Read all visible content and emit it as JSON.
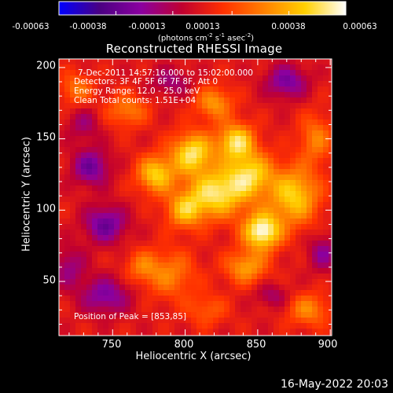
{
  "colorbar": {
    "tick_labels": [
      "-0.00063",
      "-0.00038",
      "-0.00013",
      "0.00013",
      "0.00038",
      "0.00063"
    ],
    "units_label": {
      "pre": "(photons cm",
      "exp1": "-2",
      "mid1": " s",
      "exp2": "-1",
      "mid2": " asec",
      "exp3": "-2",
      "post": ")"
    },
    "range": [
      -0.00063,
      0.00063
    ],
    "colors": [
      "#0000ff",
      "#4b0082",
      "#8b00a0",
      "#c00030",
      "#ff3000",
      "#ff8000",
      "#ffd000",
      "#ffffff"
    ]
  },
  "annotations": {
    "time_range": "7-Dec-2011 14:57:16.000 to 15:02:00.000",
    "detectors": "Detectors: 3F 4F 5F 6F 7F 8F, Att 0",
    "energy_range": "Energy Range: 12.0 - 25.0 keV",
    "clean": "Clean     Total counts: 1.51E+04",
    "peak": "Position of Peak = [853,85]"
  },
  "footer": {
    "date": "16-May-2022 20:03"
  },
  "chart_data": {
    "type": "heatmap",
    "title": "Reconstructed RHESSI Image",
    "xlabel": "Heliocentric X (arcsec)",
    "ylabel": "Heliocentric Y (arcsec)",
    "xlim": [
      713,
      901
    ],
    "ylim": [
      12,
      206
    ],
    "xticks": [
      750,
      800,
      850,
      900
    ],
    "yticks": [
      50,
      100,
      150,
      200
    ],
    "value_range": [
      -0.00063,
      0.00063
    ],
    "peak": [
      853,
      85
    ],
    "sources": [
      {
        "x": 853,
        "y": 85,
        "sx": 9,
        "sy": 9,
        "amp": 0.00063
      },
      {
        "x": 822,
        "y": 112,
        "sx": 14,
        "sy": 12,
        "amp": 0.00052
      },
      {
        "x": 805,
        "y": 140,
        "sx": 10,
        "sy": 10,
        "amp": 0.00052
      },
      {
        "x": 835,
        "y": 148,
        "sx": 9,
        "sy": 9,
        "amp": 0.0005
      },
      {
        "x": 780,
        "y": 125,
        "sx": 9,
        "sy": 9,
        "amp": 0.00046
      },
      {
        "x": 875,
        "y": 110,
        "sx": 12,
        "sy": 14,
        "amp": 0.00046
      },
      {
        "x": 845,
        "y": 125,
        "sx": 11,
        "sy": 11,
        "amp": 0.00044
      },
      {
        "x": 800,
        "y": 100,
        "sx": 9,
        "sy": 9,
        "amp": 0.00038
      },
      {
        "x": 842,
        "y": 60,
        "sx": 10,
        "sy": 8,
        "amp": 0.00034
      },
      {
        "x": 820,
        "y": 175,
        "sx": 9,
        "sy": 8,
        "amp": 0.00032
      },
      {
        "x": 760,
        "y": 170,
        "sx": 10,
        "sy": 8,
        "amp": 0.00026
      },
      {
        "x": 890,
        "y": 150,
        "sx": 8,
        "sy": 12,
        "amp": 0.00026
      },
      {
        "x": 725,
        "y": 185,
        "sx": 8,
        "sy": 8,
        "amp": 0.00024
      },
      {
        "x": 885,
        "y": 30,
        "sx": 10,
        "sy": 8,
        "amp": 0.00028
      },
      {
        "x": 790,
        "y": 55,
        "sx": 12,
        "sy": 12,
        "amp": 0.00026
      },
      {
        "x": 770,
        "y": 60,
        "sx": 8,
        "sy": 8,
        "amp": 0.00022
      },
      {
        "x": 815,
        "y": 30,
        "sx": 10,
        "sy": 8,
        "amp": 0.00018
      },
      {
        "x": 745,
        "y": 90,
        "sx": 10,
        "sy": 9,
        "amp": -0.00036
      },
      {
        "x": 735,
        "y": 130,
        "sx": 9,
        "sy": 9,
        "amp": -0.00034
      },
      {
        "x": 745,
        "y": 40,
        "sx": 12,
        "sy": 9,
        "amp": -0.0003
      },
      {
        "x": 870,
        "y": 190,
        "sx": 10,
        "sy": 8,
        "amp": -0.00032
      },
      {
        "x": 895,
        "y": 70,
        "sx": 7,
        "sy": 9,
        "amp": -0.00024
      },
      {
        "x": 720,
        "y": 60,
        "sx": 8,
        "sy": 10,
        "amp": -0.00022
      },
      {
        "x": 860,
        "y": 40,
        "sx": 8,
        "sy": 6,
        "amp": -0.00018
      },
      {
        "x": 790,
        "y": 190,
        "sx": 10,
        "sy": 7,
        "amp": -0.0002
      },
      {
        "x": 730,
        "y": 160,
        "sx": 8,
        "sy": 8,
        "amp": -0.00018
      }
    ]
  }
}
